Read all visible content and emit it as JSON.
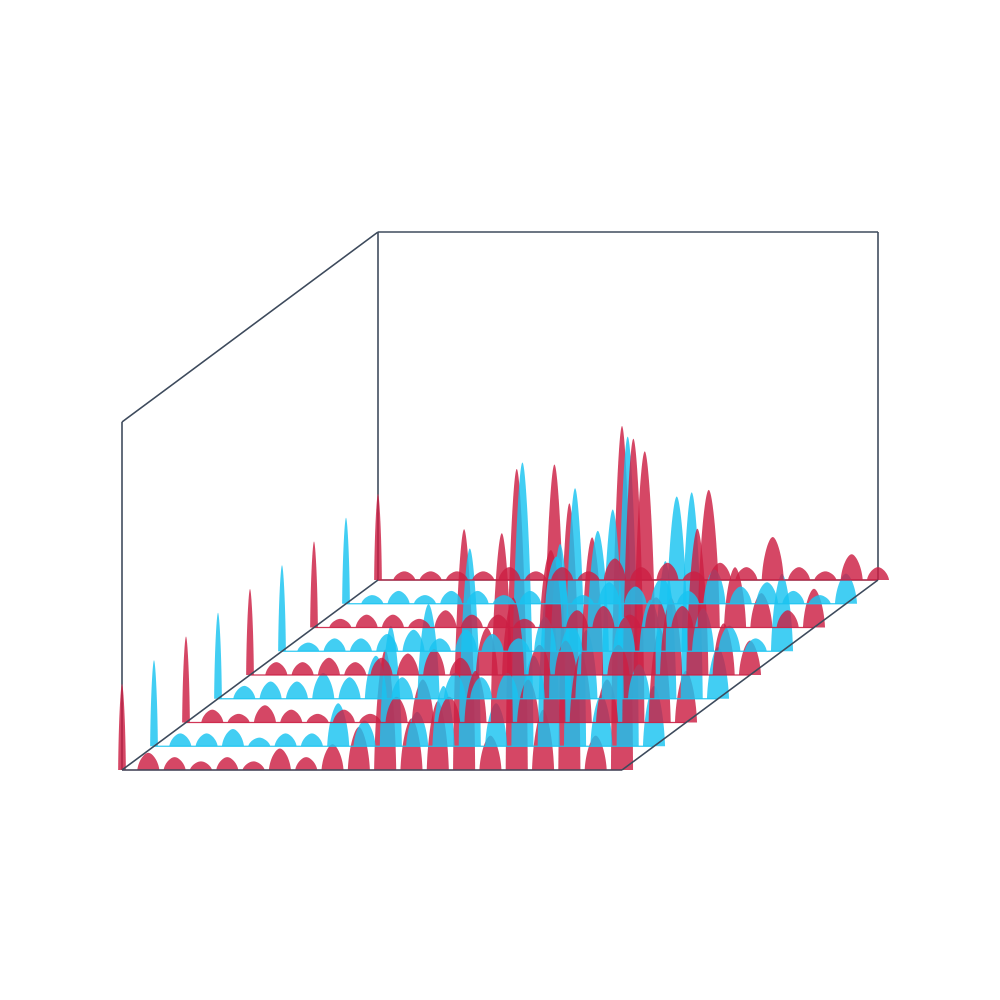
{
  "colors": {
    "background": "#ffffff",
    "frame": "#3d4a5c",
    "series_a": "#cc1f43",
    "series_b": "#19c3f0"
  },
  "chart_data": {
    "type": "area",
    "style": "3d-waterfall",
    "grid": false,
    "legend": "none",
    "x": [
      0,
      1,
      2,
      3,
      4,
      5,
      6,
      7,
      8,
      9,
      10,
      11,
      12,
      13,
      14,
      15,
      16,
      17,
      18,
      19
    ],
    "series": [
      {
        "color": "series_a",
        "values": [
          1.0,
          0.1,
          0.1,
          0.1,
          0.1,
          0.15,
          0.1,
          0.15,
          0.1,
          0.25,
          0.15,
          0.2,
          0.1,
          0.2,
          0.15,
          0.5,
          0.15,
          0.1,
          0.3,
          0.15
        ]
      },
      {
        "color": "series_b",
        "values": [
          1.0,
          0.1,
          0.15,
          0.1,
          0.15,
          0.15,
          0.1,
          0.15,
          0.55,
          0.1,
          0.25,
          0.2,
          0.3,
          0.15,
          0.4,
          0.2,
          0.25,
          0.15,
          0.1,
          0.35
        ]
      },
      {
        "color": "series_a",
        "values": [
          1.0,
          0.1,
          0.15,
          0.15,
          0.1,
          0.2,
          0.15,
          0.15,
          0.1,
          0.9,
          0.2,
          0.25,
          0.15,
          0.35,
          0.25,
          1.6,
          0.7,
          0.4,
          0.2,
          0.45
        ]
      },
      {
        "color": "series_b",
        "values": [
          1.0,
          0.1,
          0.15,
          0.15,
          0.2,
          0.25,
          0.15,
          0.25,
          0.2,
          0.15,
          0.4,
          0.3,
          1.4,
          0.4,
          0.6,
          1.8,
          0.5,
          0.3,
          0.15,
          0.9
        ]
      },
      {
        "color": "series_a",
        "values": [
          1.0,
          0.15,
          0.15,
          0.2,
          0.15,
          0.2,
          0.25,
          0.3,
          0.2,
          0.55,
          0.9,
          0.35,
          0.4,
          1.6,
          0.35,
          2.6,
          0.9,
          1.7,
          0.6,
          0.4
        ]
      },
      {
        "color": "series_b",
        "values": [
          1.0,
          0.15,
          0.2,
          0.2,
          0.3,
          0.25,
          0.5,
          0.25,
          1.1,
          0.3,
          0.25,
          0.3,
          0.5,
          1.8,
          0.8,
          2.2,
          0.4,
          1.6,
          2.4,
          0.6
        ]
      },
      {
        "color": "series_a",
        "values": [
          1.0,
          0.15,
          0.1,
          0.2,
          0.15,
          0.1,
          0.15,
          0.1,
          0.3,
          0.5,
          0.3,
          0.6,
          2.2,
          0.5,
          3.0,
          0.8,
          0.5,
          3.3,
          1.1,
          0.6
        ]
      },
      {
        "color": "series_b",
        "values": [
          1.0,
          0.15,
          0.15,
          0.2,
          0.1,
          0.15,
          0.15,
          0.5,
          0.3,
          1.4,
          0.4,
          0.7,
          2.3,
          0.5,
          3.3,
          2.0,
          3.0,
          0.6,
          3.6,
          0.7
        ]
      },
      {
        "color": "series_a",
        "values": [
          1.0,
          0.2,
          0.15,
          0.1,
          0.15,
          0.1,
          0.25,
          0.15,
          0.3,
          0.5,
          1.4,
          0.6,
          0.8,
          2.8,
          0.4,
          3.5,
          0.7,
          3.1,
          0.4,
          4.0
        ]
      }
    ]
  }
}
